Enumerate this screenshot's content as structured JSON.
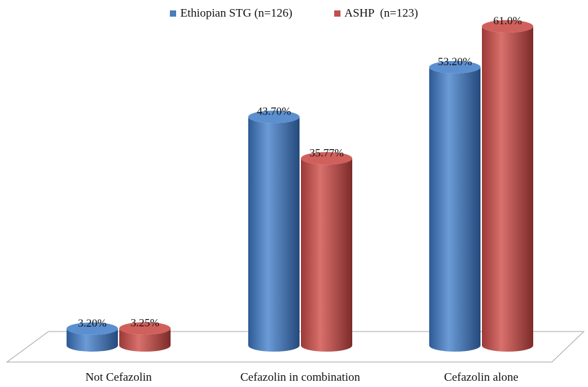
{
  "chart_data": {
    "type": "bar",
    "title": "",
    "xlabel": "",
    "ylabel": "",
    "ylim": [
      0,
      65
    ],
    "grid": false,
    "legend_placement": "top-center",
    "categories": [
      "Not Cefazolin",
      "Cefazolin in combination",
      "Cefazolin alone"
    ],
    "series": [
      {
        "name": "Ethiopian STG (n=126)",
        "color": "#4a7ebb",
        "values": [
          3.2,
          43.7,
          53.2
        ],
        "labels": [
          "3.20%",
          "43.70%",
          "53.20%"
        ]
      },
      {
        "name": "ASHP  (n=123)",
        "color": "#c0504d",
        "values": [
          3.25,
          35.77,
          61.0
        ],
        "labels": [
          "3.25%",
          "35.77%",
          "61.0%"
        ]
      }
    ]
  }
}
